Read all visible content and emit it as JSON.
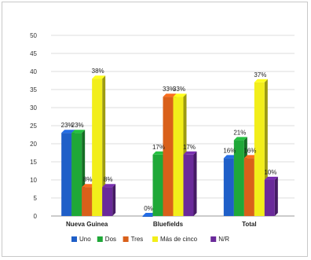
{
  "chart_data": {
    "type": "bar",
    "title": "",
    "xlabel": "",
    "ylabel": "",
    "ylim": [
      0,
      50
    ],
    "yticks": [
      0,
      5,
      10,
      15,
      20,
      25,
      30,
      35,
      40,
      45,
      50
    ],
    "grid": true,
    "legend_position": "bottom",
    "categories": [
      "Nueva Guinea",
      "Bluefields",
      "Total"
    ],
    "series": [
      {
        "name": "Uno",
        "color": "#1f5fc8",
        "values": [
          23,
          0,
          16
        ],
        "labels": [
          "23%",
          "0%",
          "16%"
        ]
      },
      {
        "name": "Dos",
        "color": "#1fa838",
        "values": [
          23,
          17,
          21
        ],
        "labels": [
          "23%",
          "17%",
          "21%"
        ]
      },
      {
        "name": "Tres",
        "color": "#d9601a",
        "values": [
          8,
          33,
          16
        ],
        "labels": [
          "8%",
          "33%",
          "16%"
        ]
      },
      {
        "name": "Más de cinco",
        "color": "#f2ee1a",
        "values": [
          38,
          33,
          37
        ],
        "labels": [
          "38%",
          "33%",
          "37%"
        ]
      },
      {
        "name": "N/R",
        "color": "#6a2a9a",
        "values": [
          8,
          17,
          10
        ],
        "labels": [
          "8%",
          "17%",
          "10%"
        ]
      }
    ]
  }
}
